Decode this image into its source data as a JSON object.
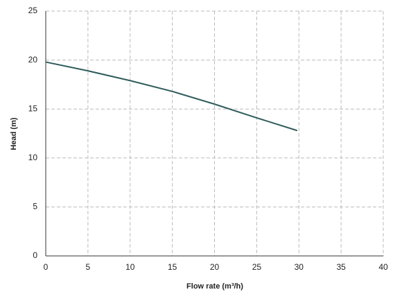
{
  "chart_data": {
    "type": "line",
    "x_label": "Flow rate (m³/h)",
    "y_label": "Head (m)",
    "x": [
      0,
      5,
      10,
      15,
      20,
      25,
      29.8
    ],
    "series": [
      {
        "color": "#2f5b5c",
        "values": [
          19.8,
          18.9,
          17.9,
          16.8,
          15.5,
          14.1,
          12.8
        ]
      }
    ],
    "xlim": [
      0,
      40
    ],
    "xticks": [
      0,
      5,
      10,
      15,
      20,
      25,
      30,
      35,
      40
    ],
    "ylim": [
      0,
      25
    ],
    "yticks": [
      0,
      5,
      10,
      15,
      20,
      25
    ],
    "grid": true
  }
}
